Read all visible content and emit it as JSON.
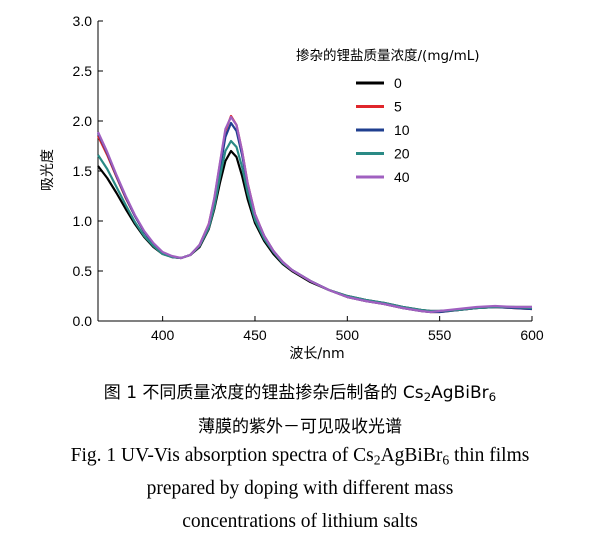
{
  "chart_data": {
    "type": "line",
    "xlabel": "波长/nm",
    "ylabel": "吸光度",
    "xlim": [
      365,
      600
    ],
    "ylim": [
      0,
      3.0
    ],
    "xticks": [
      "400",
      "450",
      "500",
      "550",
      "600"
    ],
    "yticks": [
      "0.0",
      "0.5",
      "1.0",
      "1.5",
      "2.0",
      "2.5",
      "3.0"
    ],
    "legend_title": "掺杂的锂盐质量浓度/(mg/mL)",
    "legend_position": "top-right",
    "grid": false,
    "x": [
      365,
      370,
      375,
      380,
      385,
      390,
      395,
      400,
      405,
      410,
      415,
      420,
      425,
      428,
      431,
      434,
      437,
      440,
      443,
      446,
      450,
      455,
      460,
      465,
      470,
      480,
      490,
      500,
      510,
      520,
      530,
      540,
      545,
      550,
      560,
      570,
      580,
      590,
      600
    ],
    "series": [
      {
        "name": "0",
        "color": "#000000",
        "values": [
          1.55,
          1.43,
          1.28,
          1.12,
          0.97,
          0.84,
          0.74,
          0.67,
          0.64,
          0.63,
          0.66,
          0.74,
          0.92,
          1.12,
          1.38,
          1.6,
          1.7,
          1.64,
          1.45,
          1.22,
          0.98,
          0.8,
          0.67,
          0.57,
          0.5,
          0.39,
          0.31,
          0.25,
          0.21,
          0.18,
          0.14,
          0.11,
          0.1,
          0.1,
          0.11,
          0.13,
          0.14,
          0.14,
          0.14
        ]
      },
      {
        "name": "5",
        "color": "#e0262b",
        "values": [
          1.85,
          1.66,
          1.44,
          1.23,
          1.05,
          0.89,
          0.77,
          0.68,
          0.64,
          0.63,
          0.66,
          0.76,
          0.97,
          1.22,
          1.57,
          1.9,
          2.05,
          1.96,
          1.7,
          1.38,
          1.07,
          0.85,
          0.7,
          0.59,
          0.51,
          0.4,
          0.31,
          0.24,
          0.2,
          0.17,
          0.13,
          0.1,
          0.09,
          0.09,
          0.11,
          0.13,
          0.14,
          0.13,
          0.12
        ]
      },
      {
        "name": "10",
        "color": "#1f3f8f",
        "values": [
          1.88,
          1.68,
          1.45,
          1.24,
          1.05,
          0.89,
          0.77,
          0.68,
          0.64,
          0.63,
          0.66,
          0.76,
          0.96,
          1.2,
          1.52,
          1.84,
          1.98,
          1.9,
          1.66,
          1.36,
          1.06,
          0.85,
          0.7,
          0.59,
          0.51,
          0.4,
          0.31,
          0.24,
          0.2,
          0.17,
          0.13,
          0.1,
          0.09,
          0.09,
          0.11,
          0.13,
          0.14,
          0.13,
          0.12
        ]
      },
      {
        "name": "20",
        "color": "#2a8a85",
        "values": [
          1.66,
          1.52,
          1.34,
          1.16,
          0.99,
          0.85,
          0.75,
          0.67,
          0.64,
          0.63,
          0.66,
          0.75,
          0.93,
          1.14,
          1.44,
          1.7,
          1.8,
          1.74,
          1.54,
          1.28,
          1.01,
          0.82,
          0.69,
          0.58,
          0.51,
          0.4,
          0.31,
          0.25,
          0.21,
          0.18,
          0.14,
          0.11,
          0.1,
          0.1,
          0.11,
          0.13,
          0.14,
          0.14,
          0.13
        ]
      },
      {
        "name": "40",
        "color": "#a060c0",
        "values": [
          1.89,
          1.69,
          1.46,
          1.25,
          1.06,
          0.9,
          0.78,
          0.69,
          0.65,
          0.63,
          0.66,
          0.76,
          0.97,
          1.23,
          1.58,
          1.92,
          2.04,
          1.96,
          1.7,
          1.38,
          1.07,
          0.85,
          0.7,
          0.59,
          0.51,
          0.4,
          0.31,
          0.24,
          0.2,
          0.17,
          0.13,
          0.1,
          0.09,
          0.1,
          0.12,
          0.14,
          0.15,
          0.14,
          0.14
        ]
      }
    ]
  },
  "caption": {
    "cn_line1_a": "图 1  不同质量浓度的锂盐掺杂后制备的 Cs",
    "cn_line1_sub1": "2",
    "cn_line1_b": "AgBiBr",
    "cn_line1_sub2": "6",
    "cn_line2": "薄膜的紫外－可见吸收光谱",
    "en_line1_a": "Fig. 1  UV-Vis absorption spectra of Cs",
    "en_line1_sub1": "2",
    "en_line1_b": "AgBiBr",
    "en_line1_sub2": "6",
    "en_line1_c": " thin films",
    "en_line2": "prepared by doping with different mass",
    "en_line3": "concentrations of  lithium salts"
  }
}
